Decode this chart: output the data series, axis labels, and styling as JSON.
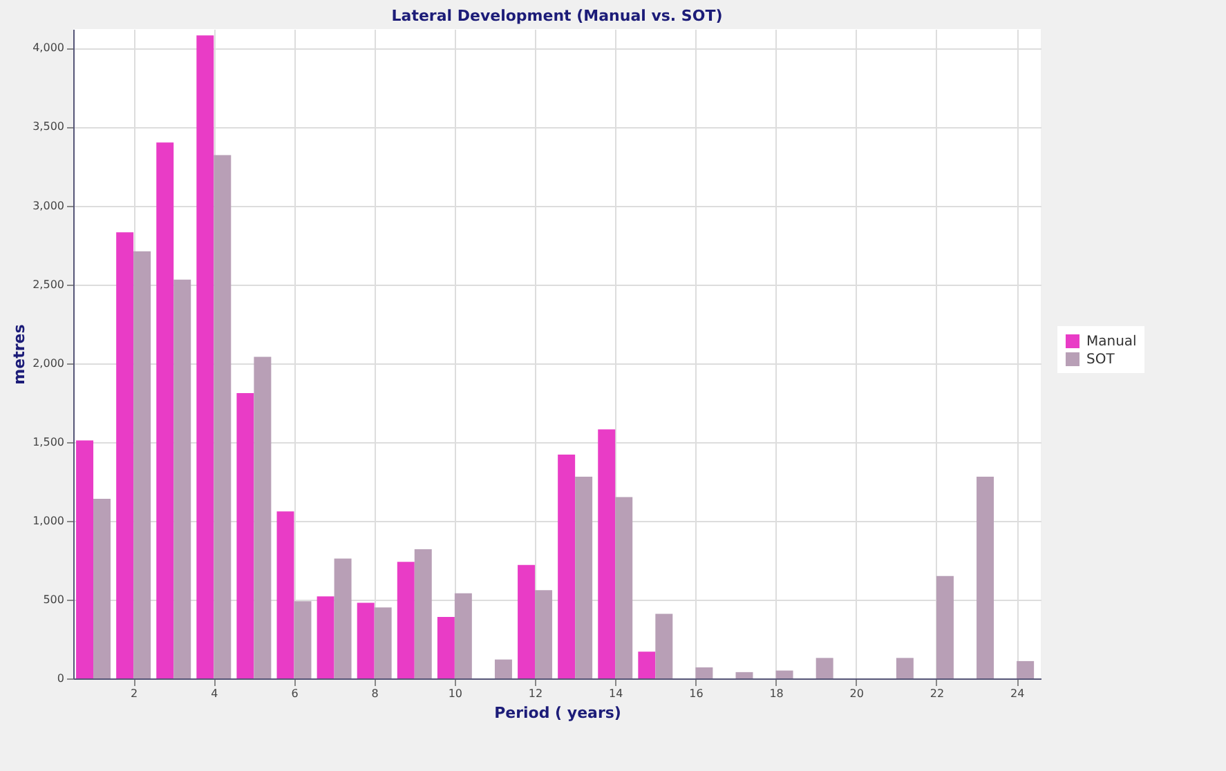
{
  "chart_data": {
    "type": "bar",
    "title": "Lateral Development (Manual vs. SOT)",
    "xlabel": "Period ( years)",
    "ylabel": "metres",
    "x": [
      1,
      2,
      3,
      4,
      5,
      6,
      7,
      8,
      9,
      10,
      11,
      12,
      13,
      14,
      15,
      16,
      17,
      18,
      19,
      20,
      21,
      22,
      23,
      24
    ],
    "series": [
      {
        "name": "Manual",
        "color": "#e93cc6",
        "values": [
          1510,
          2830,
          3400,
          4080,
          1810,
          1060,
          520,
          480,
          740,
          390,
          0,
          720,
          1420,
          1580,
          170,
          0,
          0,
          0,
          0,
          0,
          0,
          0,
          0,
          0
        ]
      },
      {
        "name": "SOT",
        "color": "#b89fb6",
        "values": [
          1140,
          2710,
          2530,
          3320,
          2040,
          490,
          760,
          450,
          820,
          540,
          120,
          560,
          1280,
          1150,
          410,
          70,
          40,
          50,
          130,
          0,
          130,
          650,
          1280,
          110
        ]
      }
    ],
    "xlim": [
      0.5,
      24.6
    ],
    "xticks": [
      2,
      4,
      6,
      8,
      10,
      12,
      14,
      16,
      18,
      20,
      22,
      24
    ],
    "ylim": [
      0,
      4120
    ],
    "yticks": [
      0,
      500,
      {
        "value": 1000,
        "label": "1,000"
      },
      {
        "value": 1500,
        "label": "1,500"
      },
      {
        "value": 2000,
        "label": "2,000"
      },
      {
        "value": 2500,
        "label": "2,500"
      },
      {
        "value": 3000,
        "label": "3,000"
      },
      {
        "value": 3500,
        "label": "3,500"
      },
      {
        "value": 4000,
        "label": "4,000"
      }
    ],
    "grid": true,
    "legend": "right"
  }
}
